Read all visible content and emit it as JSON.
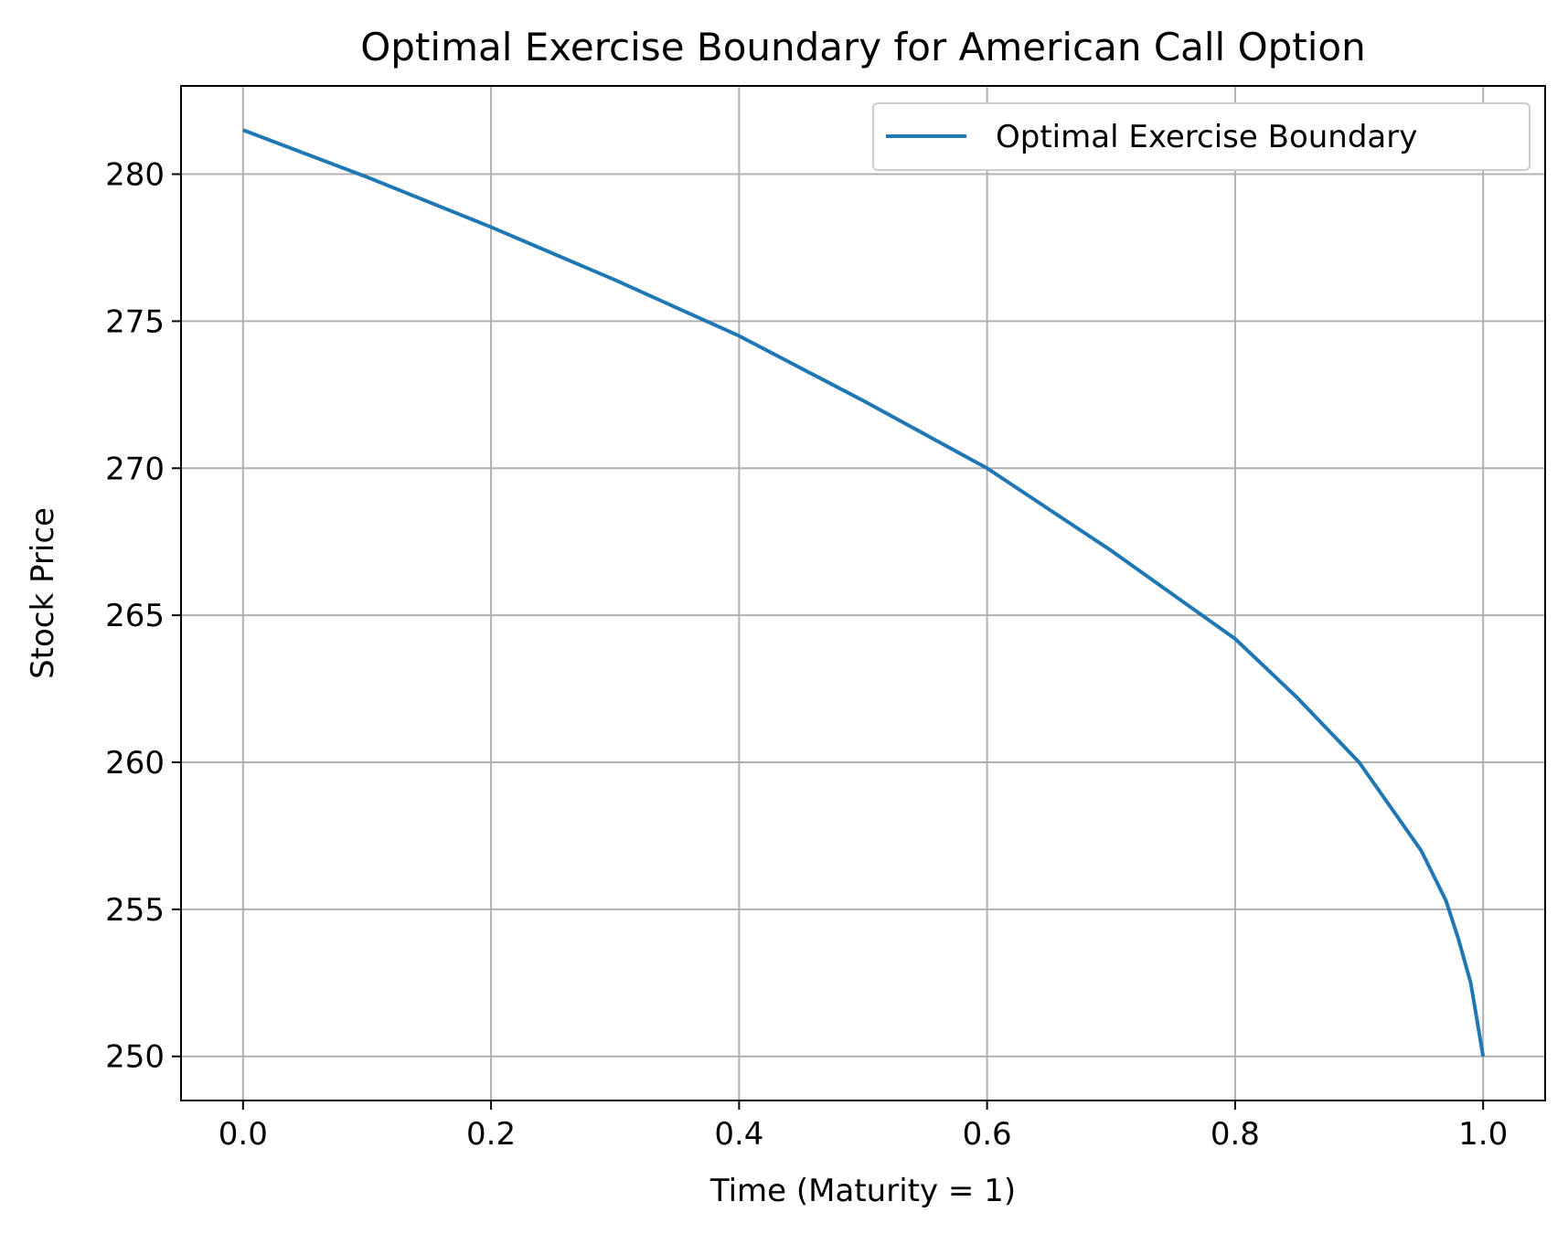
{
  "chart_data": {
    "type": "line",
    "title": "Optimal Exercise Boundary for American Call Option",
    "xlabel": "Time (Maturity = 1)",
    "ylabel": "Stock Price",
    "xlim": [
      -0.05,
      1.05
    ],
    "ylim": [
      248.5,
      283
    ],
    "xticks": [
      0.0,
      0.2,
      0.4,
      0.6,
      0.8,
      1.0
    ],
    "xtick_labels": [
      "0.0",
      "0.2",
      "0.4",
      "0.6",
      "0.8",
      "1.0"
    ],
    "yticks": [
      250,
      255,
      260,
      265,
      270,
      275,
      280
    ],
    "ytick_labels": [
      "250",
      "255",
      "260",
      "265",
      "270",
      "275",
      "280"
    ],
    "grid": true,
    "legend_position": "top-right",
    "series": [
      {
        "name": "Optimal Exercise Boundary",
        "color": "#1f77b4",
        "x": [
          0.0,
          0.1,
          0.2,
          0.3,
          0.4,
          0.5,
          0.6,
          0.7,
          0.8,
          0.85,
          0.9,
          0.95,
          0.97,
          0.98,
          0.99,
          1.0
        ],
        "y": [
          281.5,
          279.9,
          278.2,
          276.4,
          274.5,
          272.3,
          270.0,
          267.2,
          264.2,
          262.2,
          260.0,
          257.0,
          255.3,
          254.0,
          252.5,
          250.0
        ]
      }
    ]
  }
}
